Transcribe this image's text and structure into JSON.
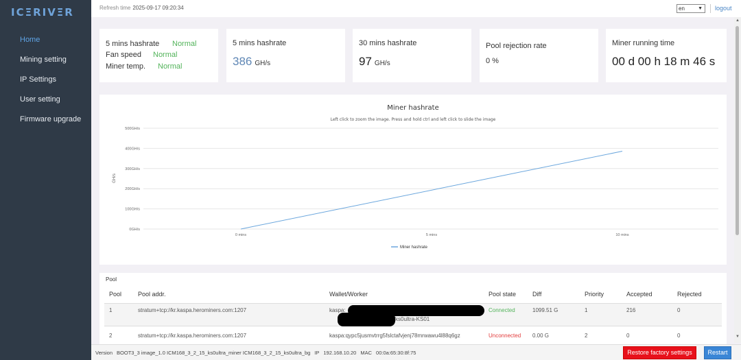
{
  "sidebar": {
    "logo": "ICΞRIVΞR",
    "items": [
      {
        "label": "Home"
      },
      {
        "label": "Mining setting"
      },
      {
        "label": "IP Settings"
      },
      {
        "label": "User setting"
      },
      {
        "label": "Firmware upgrade"
      }
    ]
  },
  "topbar": {
    "refresh_label": "Refresh time",
    "refresh_time": "2025-09-17 09:20:34",
    "language": "en",
    "logout": "logout"
  },
  "status": {
    "hashrate_label": "5 mins hashrate",
    "hashrate_status": "Normal",
    "fan_label": "Fan speed",
    "fan_status": "Normal",
    "temp_label": "Miner temp.",
    "temp_status": "Normal"
  },
  "cards": {
    "h5_label": "5 mins hashrate",
    "h5_value": "386",
    "h5_unit": "GH/s",
    "h30_label": "30 mins hashrate",
    "h30_value": "97",
    "h30_unit": "GH/s",
    "reject_label": "Pool rejection rate",
    "reject_value": "0 %",
    "runtime_label": "Miner running time",
    "runtime_value": "00 d 00 h 18 m 46 s"
  },
  "chart_data": {
    "type": "line",
    "title": "Miner hashrate",
    "subtitle": "Left click to zoom the image. Press and hold ctrl and left click to slide the image",
    "ylabel": "GH/s",
    "ylim": [
      0,
      500
    ],
    "y_ticks": [
      "0GH/s",
      "100GH/s",
      "200GH/s",
      "300GH/s",
      "400GH/s",
      "500GH/s"
    ],
    "x_ticks": [
      "0 mins",
      "5 mins",
      "10 mins"
    ],
    "xlim": [
      0,
      10
    ],
    "legend": "bottom-center",
    "grid": true,
    "series": [
      {
        "name": "Miner hashrate",
        "x": [
          0,
          10
        ],
        "values": [
          0,
          386
        ],
        "color": "#6aa6dd"
      }
    ]
  },
  "pool": {
    "title": "Pool",
    "headers": [
      "Pool",
      "Pool addr.",
      "Wallet/Worker",
      "Pool state",
      "Diff",
      "Priority",
      "Accepted",
      "Rejected"
    ],
    "rows": [
      {
        "pool": "1",
        "addr": "stratum+tcp://kr.kaspa.herominers.com:1207",
        "wallet": "kaspa:",
        "worker": "ks0ultra-KS01",
        "state": "Connected",
        "diff": "1099.51 G",
        "priority": "1",
        "accepted": "216",
        "rejected": "0"
      },
      {
        "pool": "2",
        "addr": "stratum+tcp://kr.kaspa.herominers.com:1207",
        "wallet": "kaspa:qypc5jusmvtrrg5fslctafvjenj78mrwawu4l88q6gz",
        "worker": "",
        "state": "Unconnected",
        "diff": "0.00 G",
        "priority": "2",
        "accepted": "0",
        "rejected": "0"
      }
    ]
  },
  "footer": {
    "version_label": "Version",
    "version": "BOOT3_3 image_1.0 ICM168_3_2_15_ks0ultra_miner ICM168_3_2_15_ks0ultra_bg",
    "ip_label": "IP",
    "ip": "192.168.10.20",
    "mac_label": "MAC",
    "mac": "00:0a:65:30:8f:75",
    "restore_label": "Restore factory settings",
    "restart_label": "Restart"
  },
  "colors": {
    "sidebar_bg": "#2f3a47",
    "accent": "#5fa4e6",
    "ok_green": "#52b35a",
    "danger_red": "#e8111b",
    "button_blue": "#3a86d6"
  }
}
